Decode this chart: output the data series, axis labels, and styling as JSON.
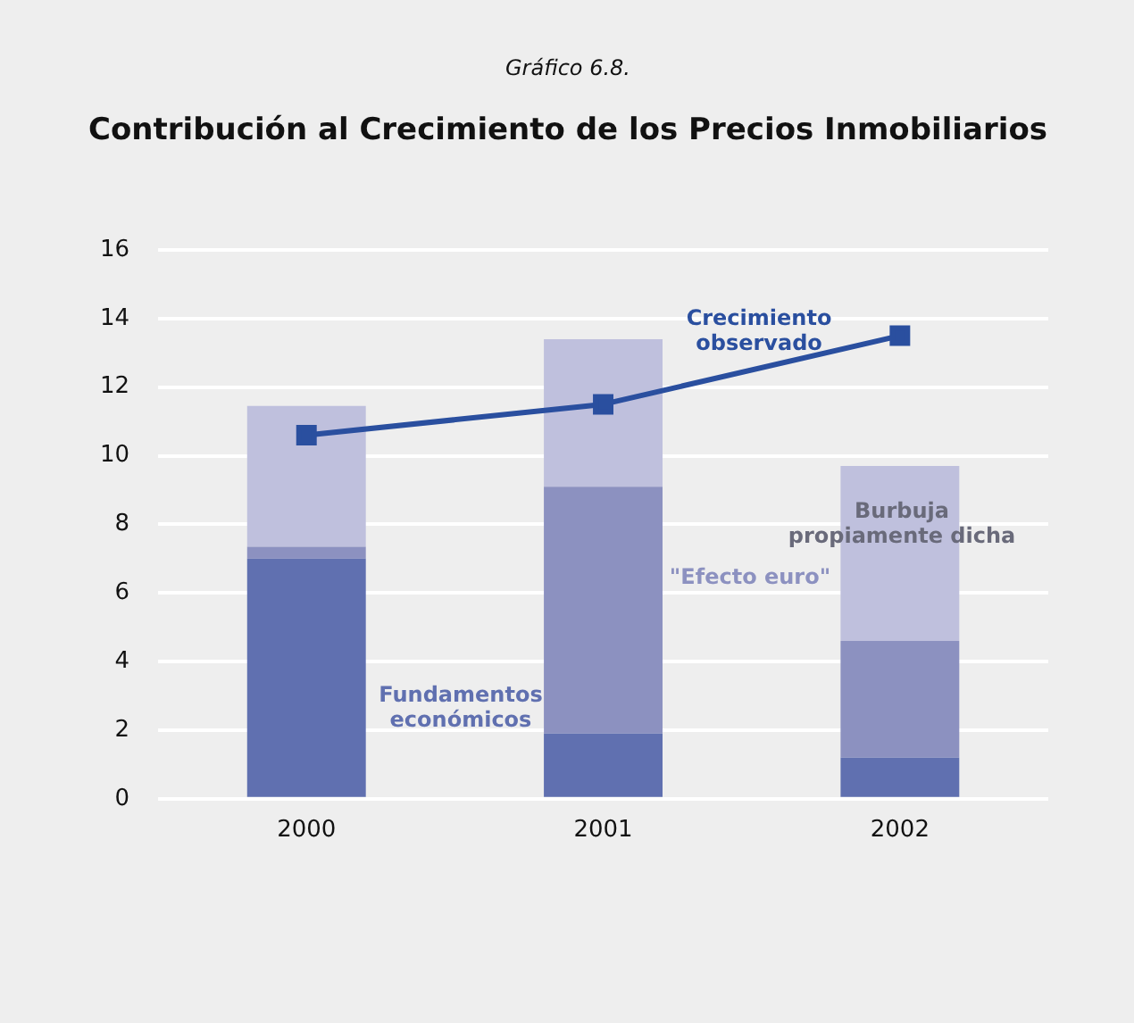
{
  "chart_data": {
    "type": "bar",
    "subtitle": "Gráfico 6.8.",
    "title": "Contribución al Crecimiento de los Precios Inmobiliarios",
    "categories": [
      "2000",
      "2001",
      "2002"
    ],
    "stacked": true,
    "series": [
      {
        "name": "Fundamentos económicos",
        "color": "#6070b0",
        "values": [
          7.0,
          1.9,
          1.2
        ]
      },
      {
        "name": "\"Efecto euro\"",
        "color": "#8c91c0",
        "values": [
          0.35,
          7.2,
          3.4
        ]
      },
      {
        "name": "Burbuja propiamente dicha",
        "color": "#bfc0dd",
        "values": [
          4.1,
          4.3,
          5.1
        ]
      },
      {
        "name": "Crecimiento observado",
        "type": "line",
        "color": "#2a4f9f",
        "values": [
          10.6,
          11.5,
          13.5
        ],
        "marker": "square"
      }
    ],
    "ylim": [
      0,
      16
    ],
    "yticks": [
      0,
      2,
      4,
      6,
      8,
      10,
      12,
      14,
      16
    ],
    "grid": "y",
    "legend": false
  }
}
